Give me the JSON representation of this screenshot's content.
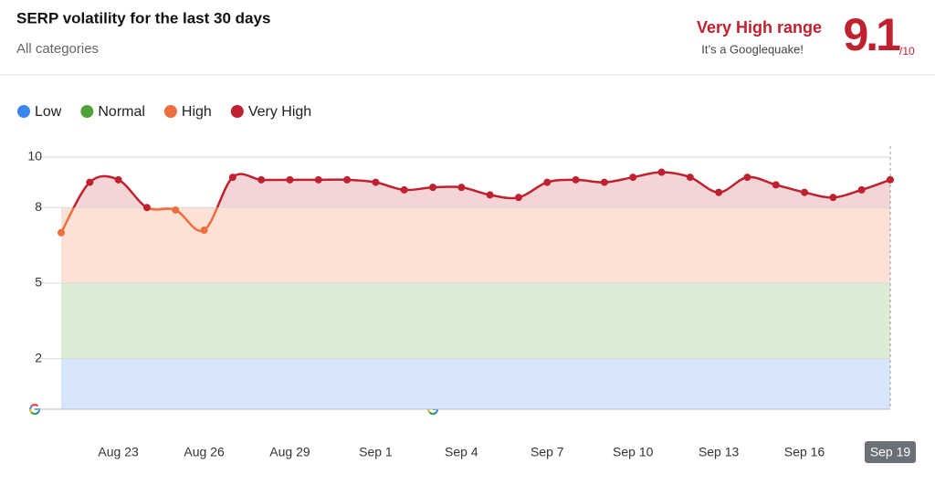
{
  "chart_data": {
    "type": "line",
    "title": "SERP volatility for the last 30 days",
    "subtitle": "All categories",
    "range_label": "Very High range",
    "range_note": "It’s a Googlequake!",
    "score": 9.1,
    "score_max": "/10",
    "categories": [
      null,
      null,
      "Aug 23",
      null,
      null,
      "Aug 26",
      null,
      null,
      "Aug 29",
      null,
      null,
      "Sep 1",
      null,
      null,
      "Sep 4",
      null,
      null,
      "Sep 7",
      null,
      null,
      "Sep 10",
      null,
      null,
      "Sep 13",
      null,
      null,
      "Sep 16",
      null,
      null,
      "Sep 19"
    ],
    "values": [
      7.0,
      9.0,
      9.1,
      8.0,
      7.9,
      7.1,
      9.2,
      9.1,
      9.1,
      9.1,
      9.1,
      9.0,
      8.7,
      8.8,
      8.8,
      8.5,
      8.4,
      9.0,
      9.1,
      9.0,
      9.2,
      9.4,
      9.2,
      8.6,
      9.2,
      8.9,
      8.6,
      8.4,
      8.7,
      9.1
    ],
    "ylim": [
      0,
      10
    ],
    "yticks": [
      2,
      5,
      8,
      10
    ],
    "bands": [
      {
        "name": "Low",
        "color": "#3a86ee",
        "fill": "#d7e6fb",
        "from": 0,
        "to": 2
      },
      {
        "name": "Normal",
        "color": "#4ea237",
        "fill": "#dcebd4",
        "from": 2,
        "to": 5
      },
      {
        "name": "High",
        "color": "#ef6e3f",
        "fill": "#fce1d6",
        "from": 5,
        "to": 8
      },
      {
        "name": "Very High",
        "color": "#c0212f",
        "fill": "#f3d5d8",
        "from": 8,
        "to": 10
      }
    ]
  }
}
